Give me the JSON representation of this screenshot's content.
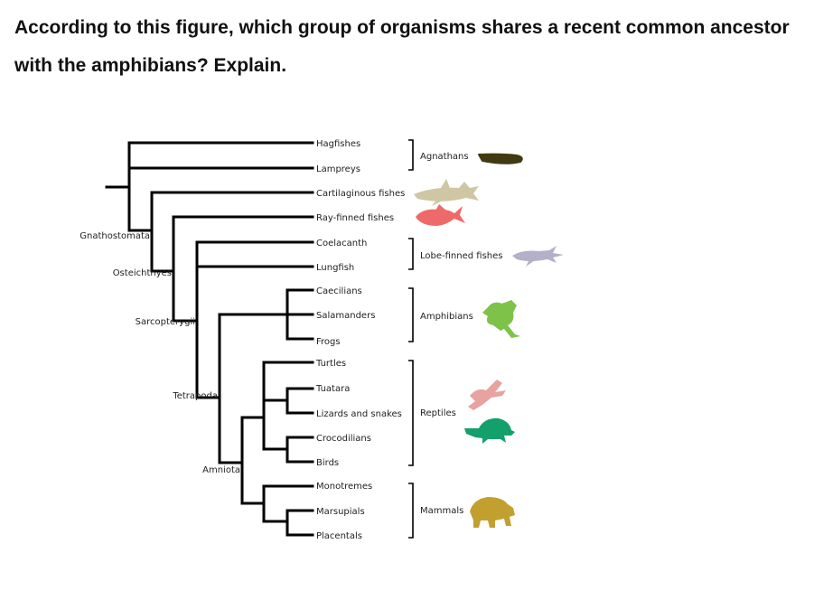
{
  "question": {
    "text": "According to this figure, which group of organisms shares a recent common ancestor with the amphibians? Explain."
  },
  "tree": {
    "taxa": [
      "Hagfishes",
      "Lampreys",
      "Cartilaginous fishes",
      "Ray-finned fishes",
      "Coelacanth",
      "Lungfish",
      "Caecilians",
      "Salamanders",
      "Frogs",
      "Turtles",
      "Tuatara",
      "Lizards and snakes",
      "Crocodilians",
      "Birds",
      "Monotremes",
      "Marsupials",
      "Placentals"
    ],
    "clades": {
      "gnathostomata": "Gnathostomata",
      "osteichthyes": "Osteichthyes",
      "sarcopterygii": "Sarcopterygii",
      "tetrapoda": "Tetrapoda",
      "amniota": "Amniota"
    },
    "groups": {
      "agnathans": "Agnathans",
      "cartilaginous": "Cartilaginous fishes",
      "rayfinned": "Ray-finned fishes",
      "lobefinned": "Lobe-finned fishes",
      "amphibians": "Amphibians",
      "reptiles": "Reptiles",
      "mammals": "Mammals"
    },
    "silhouettes": [
      {
        "name": "lamprey-silhouette",
        "color": "#3f3a14"
      },
      {
        "name": "shark-silhouette",
        "color": "#cfc7a4"
      },
      {
        "name": "ray-finned-fish-silhouette",
        "color": "#ee6a6a"
      },
      {
        "name": "lobe-finned-fish-silhouette",
        "color": "#b3b0c9"
      },
      {
        "name": "frog-silhouette",
        "color": "#7ec24a"
      },
      {
        "name": "bird-silhouette",
        "color": "#e7a3a0"
      },
      {
        "name": "turtle-silhouette",
        "color": "#14a06a"
      },
      {
        "name": "bear-silhouette",
        "color": "#c2a030"
      }
    ]
  }
}
